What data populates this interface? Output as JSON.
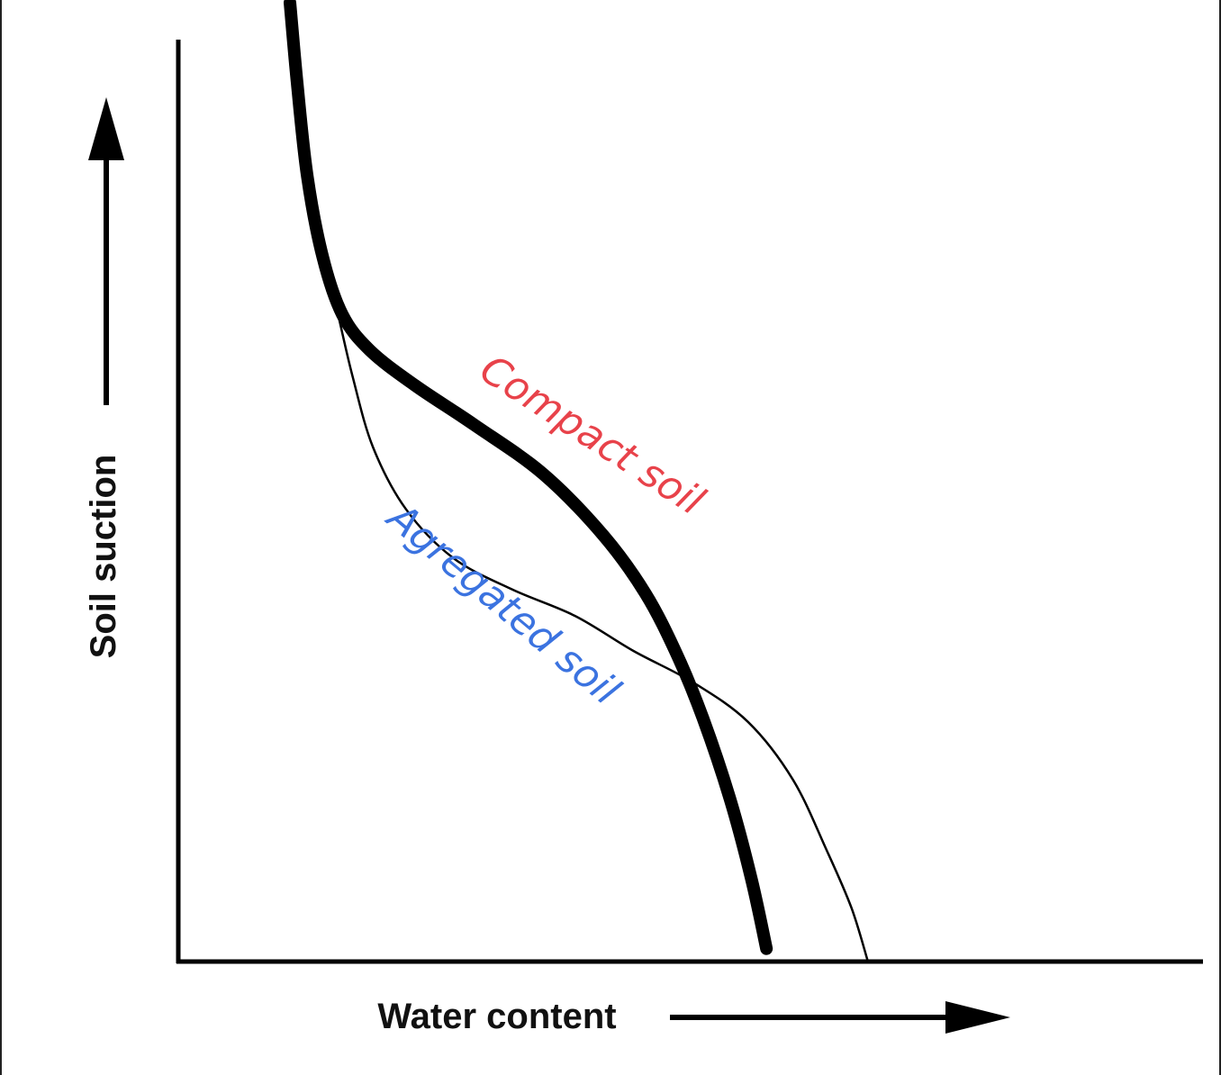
{
  "chart_data": {
    "type": "line",
    "xlabel": "Water content",
    "ylabel": "Soil suction",
    "xlim": [
      0,
      100
    ],
    "ylim": [
      0,
      100
    ],
    "grid": false,
    "legend": "none",
    "series": [
      {
        "name": "Compact soil",
        "color": "#000000",
        "label_color": "#e8424a",
        "line_weight": "thick",
        "points": [
          [
            10.9,
            104.0
          ],
          [
            11.6,
            95.3
          ],
          [
            12.6,
            85.1
          ],
          [
            14.1,
            76.4
          ],
          [
            16.0,
            70.2
          ],
          [
            18.7,
            66.3
          ],
          [
            23.1,
            62.5
          ],
          [
            28.9,
            58.2
          ],
          [
            35.6,
            52.9
          ],
          [
            41.5,
            46.2
          ],
          [
            45.6,
            39.9
          ],
          [
            48.7,
            33.2
          ],
          [
            51.2,
            26.4
          ],
          [
            53.8,
            17.8
          ],
          [
            55.9,
            9.1
          ],
          [
            57.4,
            1.4
          ]
        ]
      },
      {
        "name": "Agregated soil",
        "color": "#000000",
        "label_color": "#3b73e0",
        "line_weight": "thin",
        "points": [
          [
            12.6,
            85.1
          ],
          [
            13.7,
            78.8
          ],
          [
            15.3,
            71.6
          ],
          [
            17.0,
            63.5
          ],
          [
            19.0,
            55.8
          ],
          [
            22.2,
            49.1
          ],
          [
            26.8,
            43.8
          ],
          [
            32.5,
            40.4
          ],
          [
            38.7,
            37.5
          ],
          [
            44.4,
            33.7
          ],
          [
            50.2,
            30.3
          ],
          [
            55.6,
            26.0
          ],
          [
            60.0,
            19.7
          ],
          [
            63.3,
            12.0
          ],
          [
            65.7,
            5.8
          ],
          [
            67.3,
            0.0
          ]
        ]
      }
    ],
    "annotations": [
      {
        "text": "Compact soil",
        "series": "Compact soil",
        "color": "#e8424a"
      },
      {
        "text": "Agregated soil",
        "series": "Agregated soil",
        "color": "#3b73e0"
      }
    ]
  }
}
